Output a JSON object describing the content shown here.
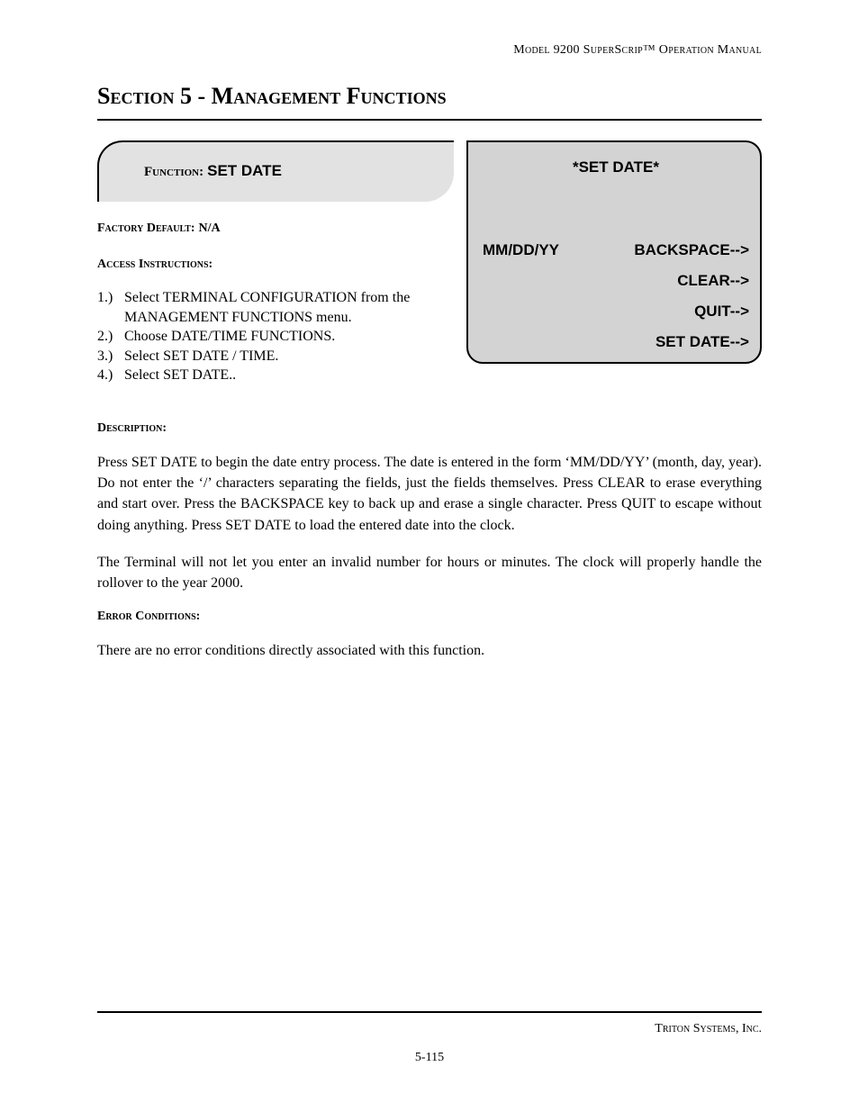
{
  "header": {
    "running": "Model 9200 SuperScrip™ Operation Manual"
  },
  "section": {
    "title": "Section 5 - Management Functions"
  },
  "function_tab": {
    "label": "Function:",
    "value": "SET DATE"
  },
  "factory_default": {
    "label": "Factory Default:",
    "value": "N/A"
  },
  "access_instructions": {
    "label": "Access Instructions:",
    "items": [
      {
        "num": "1.)",
        "text": "Select TERMINAL CONFIGURATION from the MANAGEMENT FUNCTIONS menu."
      },
      {
        "num": "2.)",
        "text": "Choose DATE/TIME FUNCTIONS."
      },
      {
        "num": "3.)",
        "text": "Select SET DATE / TIME."
      },
      {
        "num": "4.)",
        "text": "Select SET DATE.."
      }
    ]
  },
  "screen": {
    "title": "*SET DATE*",
    "left_field": "MM/DD/YY",
    "buttons": [
      "BACKSPACE-->",
      "CLEAR-->",
      "QUIT-->",
      "SET DATE-->"
    ],
    "colors": {
      "background": "#d3d3d3",
      "border": "#000000",
      "text": "#000000"
    }
  },
  "description": {
    "label": "Description:",
    "paragraphs": [
      "Press SET DATE to begin the date entry process. The date is entered in the form ‘MM/DD/YY’ (month, day, year).  Do not enter the ‘/’ characters separating the fields, just the fields themselves. Press CLEAR to erase everything and start over.  Press the BACKSPACE key to back up and erase a single character.  Press QUIT to escape without doing anything.  Press SET DATE to load the entered date into the clock.",
      "The Terminal will not let you enter an invalid number for hours or minutes.  The clock will properly handle the rollover to the year 2000."
    ]
  },
  "error_conditions": {
    "label": "Error Conditions:",
    "text": "There are no error conditions directly associated with this function."
  },
  "footer": {
    "company": "Triton Systems, Inc.",
    "page": "5-115"
  }
}
